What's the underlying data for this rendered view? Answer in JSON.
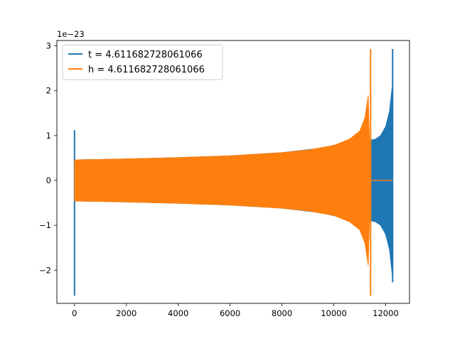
{
  "chart_data": {
    "type": "line",
    "title": "",
    "xlabel": "",
    "ylabel": "",
    "xlim": [
      -680,
      12920
    ],
    "ylim": [
      -2.74,
      3.12
    ],
    "y_scale_label": "1e−23",
    "grid": false,
    "legend_position": "top-left",
    "x_ticks": [
      0,
      2000,
      4000,
      6000,
      8000,
      10000,
      12000
    ],
    "x_tick_labels": [
      "0",
      "2000",
      "4000",
      "6000",
      "8000",
      "10000",
      "12000"
    ],
    "y_ticks": [
      -2,
      -1,
      0,
      1,
      2,
      3
    ],
    "y_tick_labels": [
      "−2",
      "−1",
      "0",
      "1",
      "2",
      "3"
    ],
    "series": [
      {
        "name": "t = 4.611682728061066",
        "color": "#1f77b4",
        "spike": {
          "x": 0,
          "min": -2.57,
          "max": 1.12
        },
        "envelope": [
          {
            "x": 0,
            "amp": 0.46
          },
          {
            "x": 2000,
            "amp": 0.48
          },
          {
            "x": 4000,
            "amp": 0.51
          },
          {
            "x": 6000,
            "amp": 0.55
          },
          {
            "x": 8000,
            "amp": 0.62
          },
          {
            "x": 9500,
            "amp": 0.72
          },
          {
            "x": 10500,
            "amp": 0.85
          },
          {
            "x": 11400,
            "amp": 0.9
          },
          {
            "x": 11600,
            "amp": 0.92
          },
          {
            "x": 11800,
            "amp": 1.0
          },
          {
            "x": 12000,
            "amp": 1.2
          },
          {
            "x": 12150,
            "amp": 1.55
          },
          {
            "x": 12250,
            "amp": 2.1
          }
        ],
        "peak": {
          "x": 12270,
          "min": -2.27,
          "max": 2.93
        }
      },
      {
        "name": "h = 4.611682728061066",
        "color": "#ff7f0e",
        "envelope": [
          {
            "x": 0,
            "amp": 0.46
          },
          {
            "x": 2000,
            "amp": 0.48
          },
          {
            "x": 4000,
            "amp": 0.51
          },
          {
            "x": 6000,
            "amp": 0.55
          },
          {
            "x": 8000,
            "amp": 0.62
          },
          {
            "x": 9000,
            "amp": 0.68
          },
          {
            "x": 10000,
            "amp": 0.78
          },
          {
            "x": 10600,
            "amp": 0.92
          },
          {
            "x": 11000,
            "amp": 1.1
          },
          {
            "x": 11200,
            "amp": 1.4
          },
          {
            "x": 11330,
            "amp": 1.9
          }
        ],
        "peak": {
          "x": 11420,
          "min": -2.57,
          "max": 2.93
        },
        "tail": {
          "x_start": 11420,
          "x_end": 12270,
          "value": 0
        }
      }
    ]
  }
}
